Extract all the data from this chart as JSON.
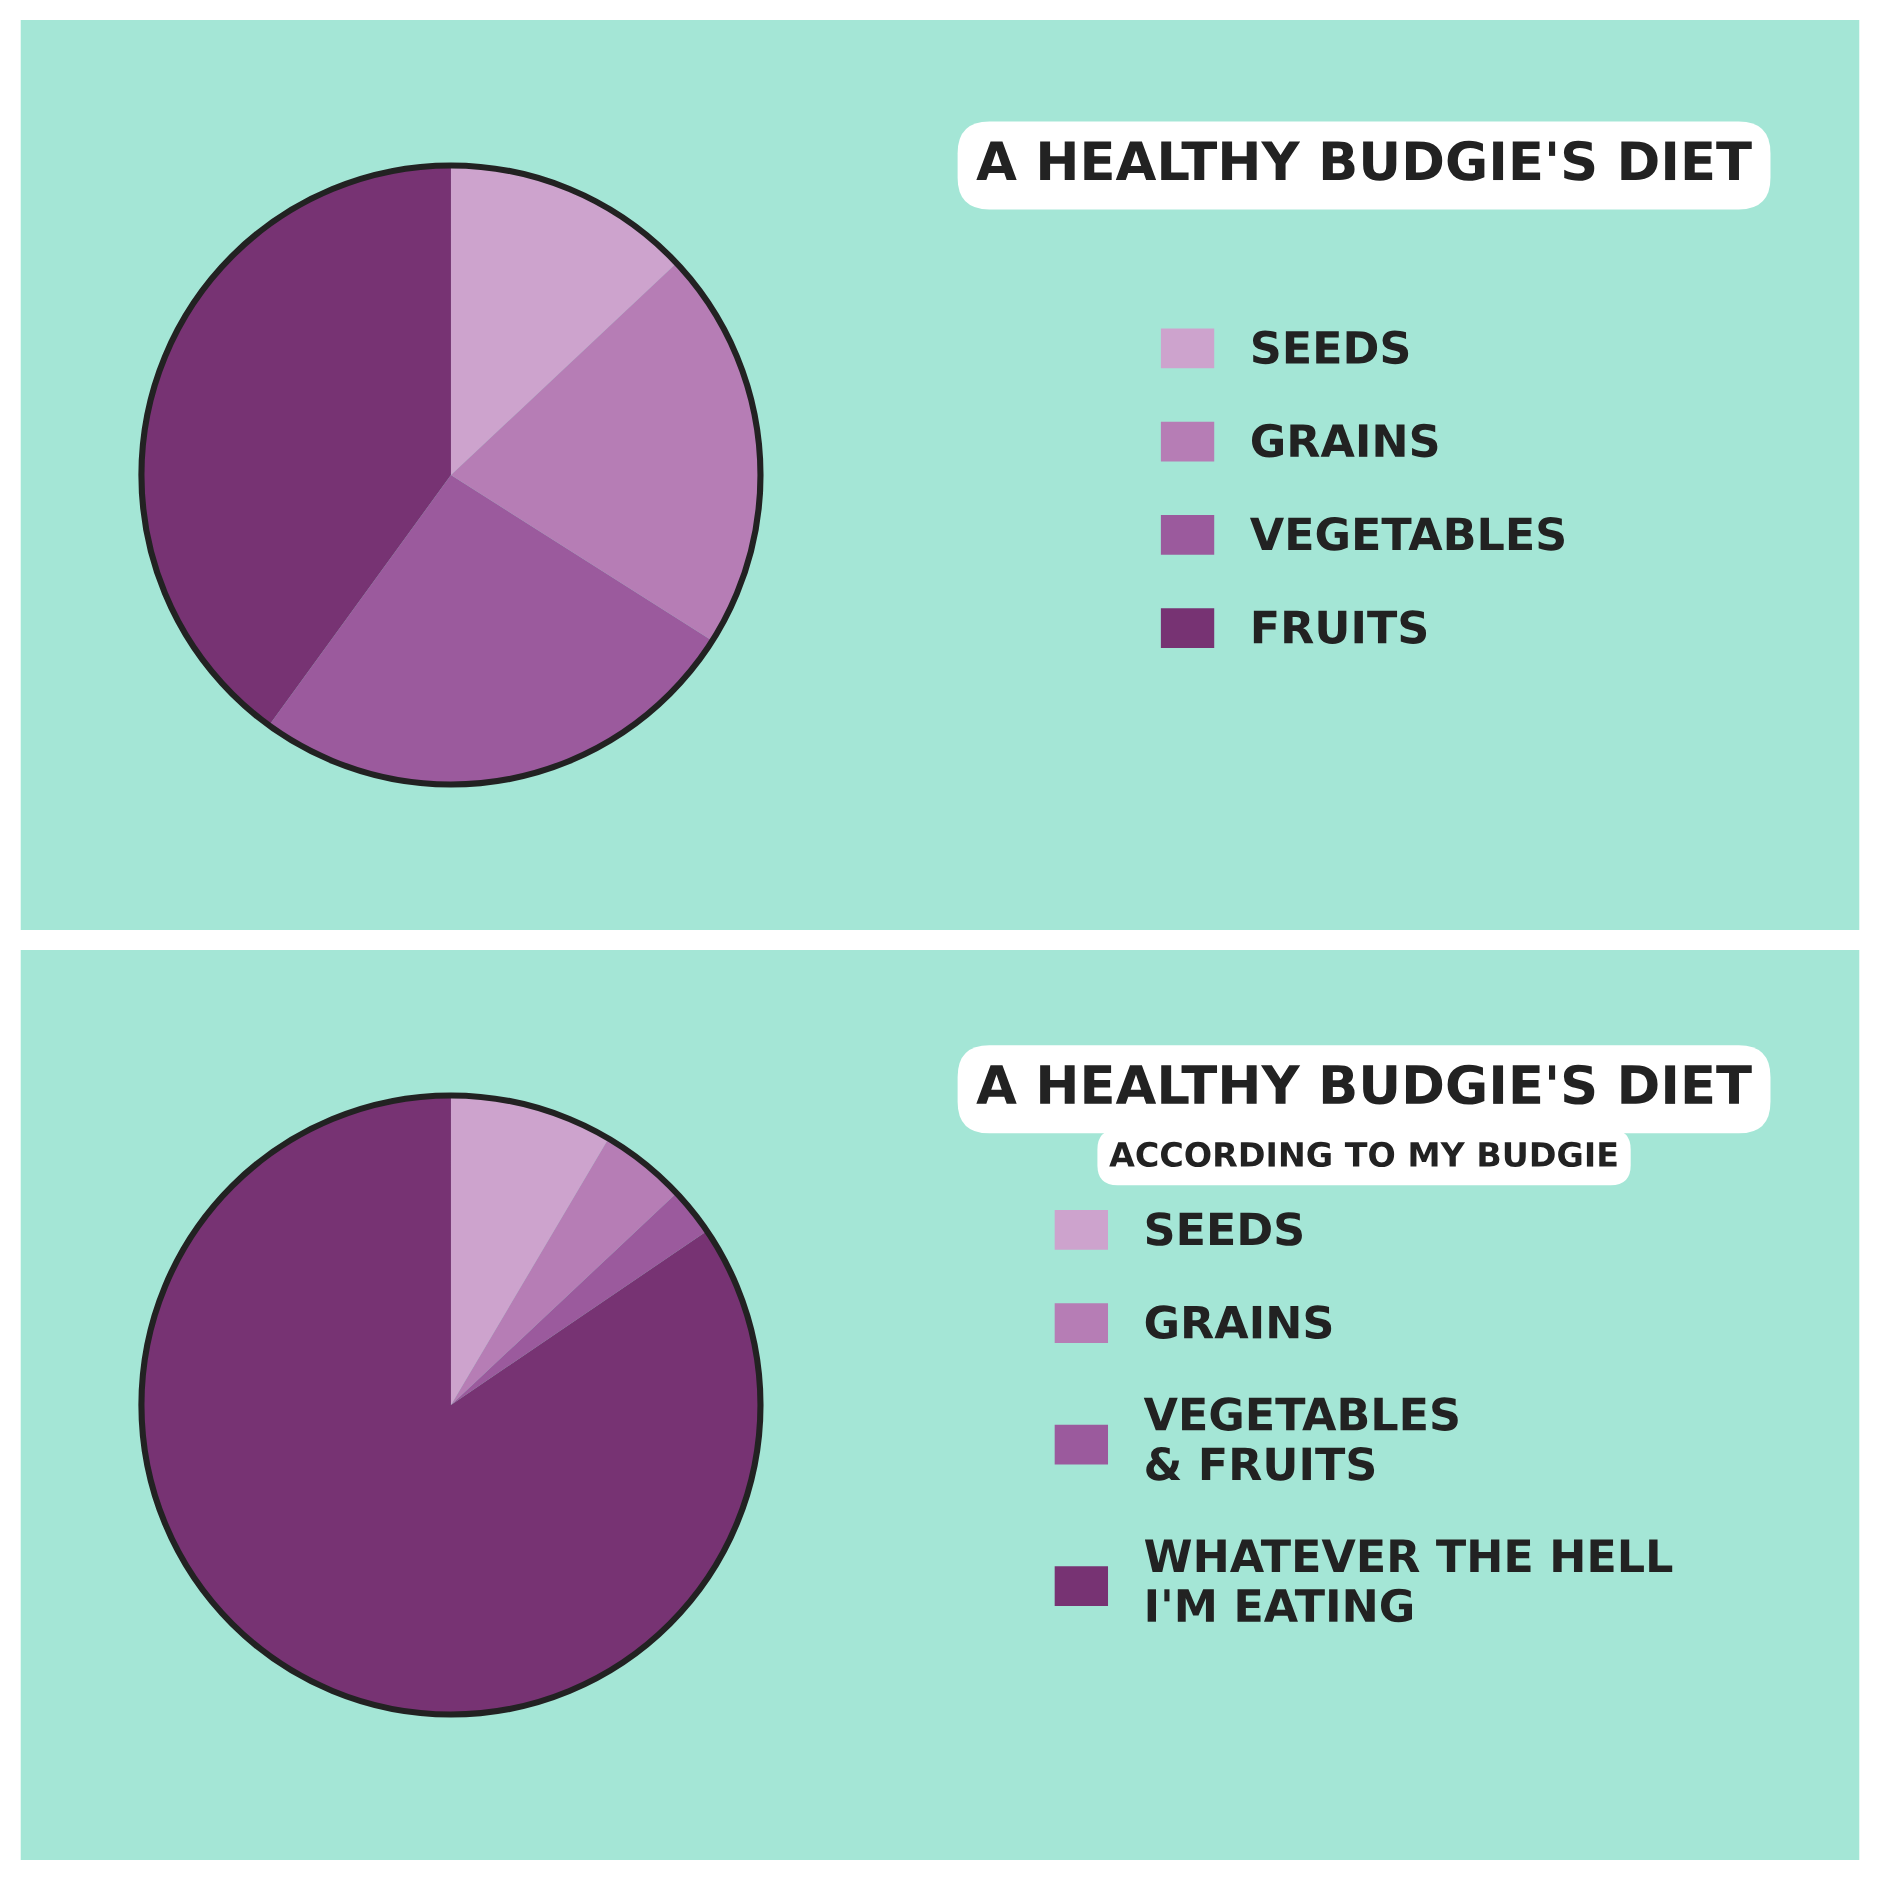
{
  "chart_data": [
    {
      "type": "pie",
      "title": "A HEALTHY BUDGIE'S DIET",
      "categories": [
        "SEEDS",
        "GRAINS",
        "VEGETABLES",
        "FRUITS"
      ],
      "values": [
        13,
        21,
        26,
        40
      ],
      "colors": [
        "#cda3cd",
        "#b67db5",
        "#9b5a9d",
        "#773373"
      ],
      "legend": "right"
    },
    {
      "type": "pie",
      "title": "A HEALTHY BUDGIE'S DIET",
      "subtitle": "ACCORDING TO MY BUDGIE",
      "categories": [
        "SEEDS",
        "GRAINS",
        "VEGETABLES\n& FRUITS",
        "WHATEVER THE HELL\nI'M EATING"
      ],
      "values": [
        8.5,
        4.5,
        2.5,
        84.5
      ],
      "colors": [
        "#cda3cd",
        "#b67db5",
        "#9b5a9d",
        "#773373"
      ],
      "legend": "right"
    }
  ]
}
